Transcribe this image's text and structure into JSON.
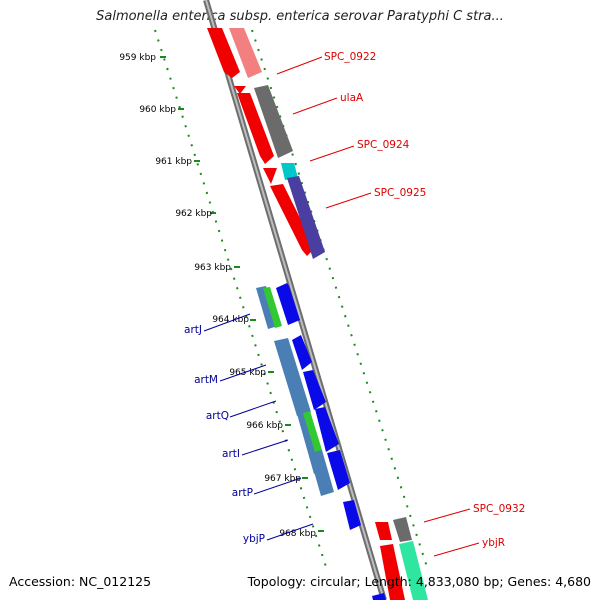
{
  "title": "Salmonella enterica subsp. enterica serovar Paratyphi C stra...",
  "footer": {
    "accession": "Accession: NC_012125",
    "topology": "Topology: circular; Length: 4,833,080 bp; Genes: 4,680"
  },
  "colors": {
    "backbone": "#8a8a8a",
    "tick": "#1a8a1a",
    "forward_label": "#dd0000",
    "reverse_label": "#000099"
  },
  "ticks": [
    "959 kbp",
    "960 kbp",
    "961 kbp",
    "962 kbp",
    "963 kbp",
    "964 kbp",
    "965 kbp",
    "966 kbp",
    "967 kbp",
    "968 kbp"
  ],
  "forward_labels": [
    "SPC_0922",
    "ulaA",
    "SPC_0924",
    "SPC_0925",
    "SPC_0932",
    "ybjR"
  ],
  "reverse_labels": [
    "artJ",
    "artM",
    "artQ",
    "artI",
    "artP",
    "ybjP"
  ]
}
